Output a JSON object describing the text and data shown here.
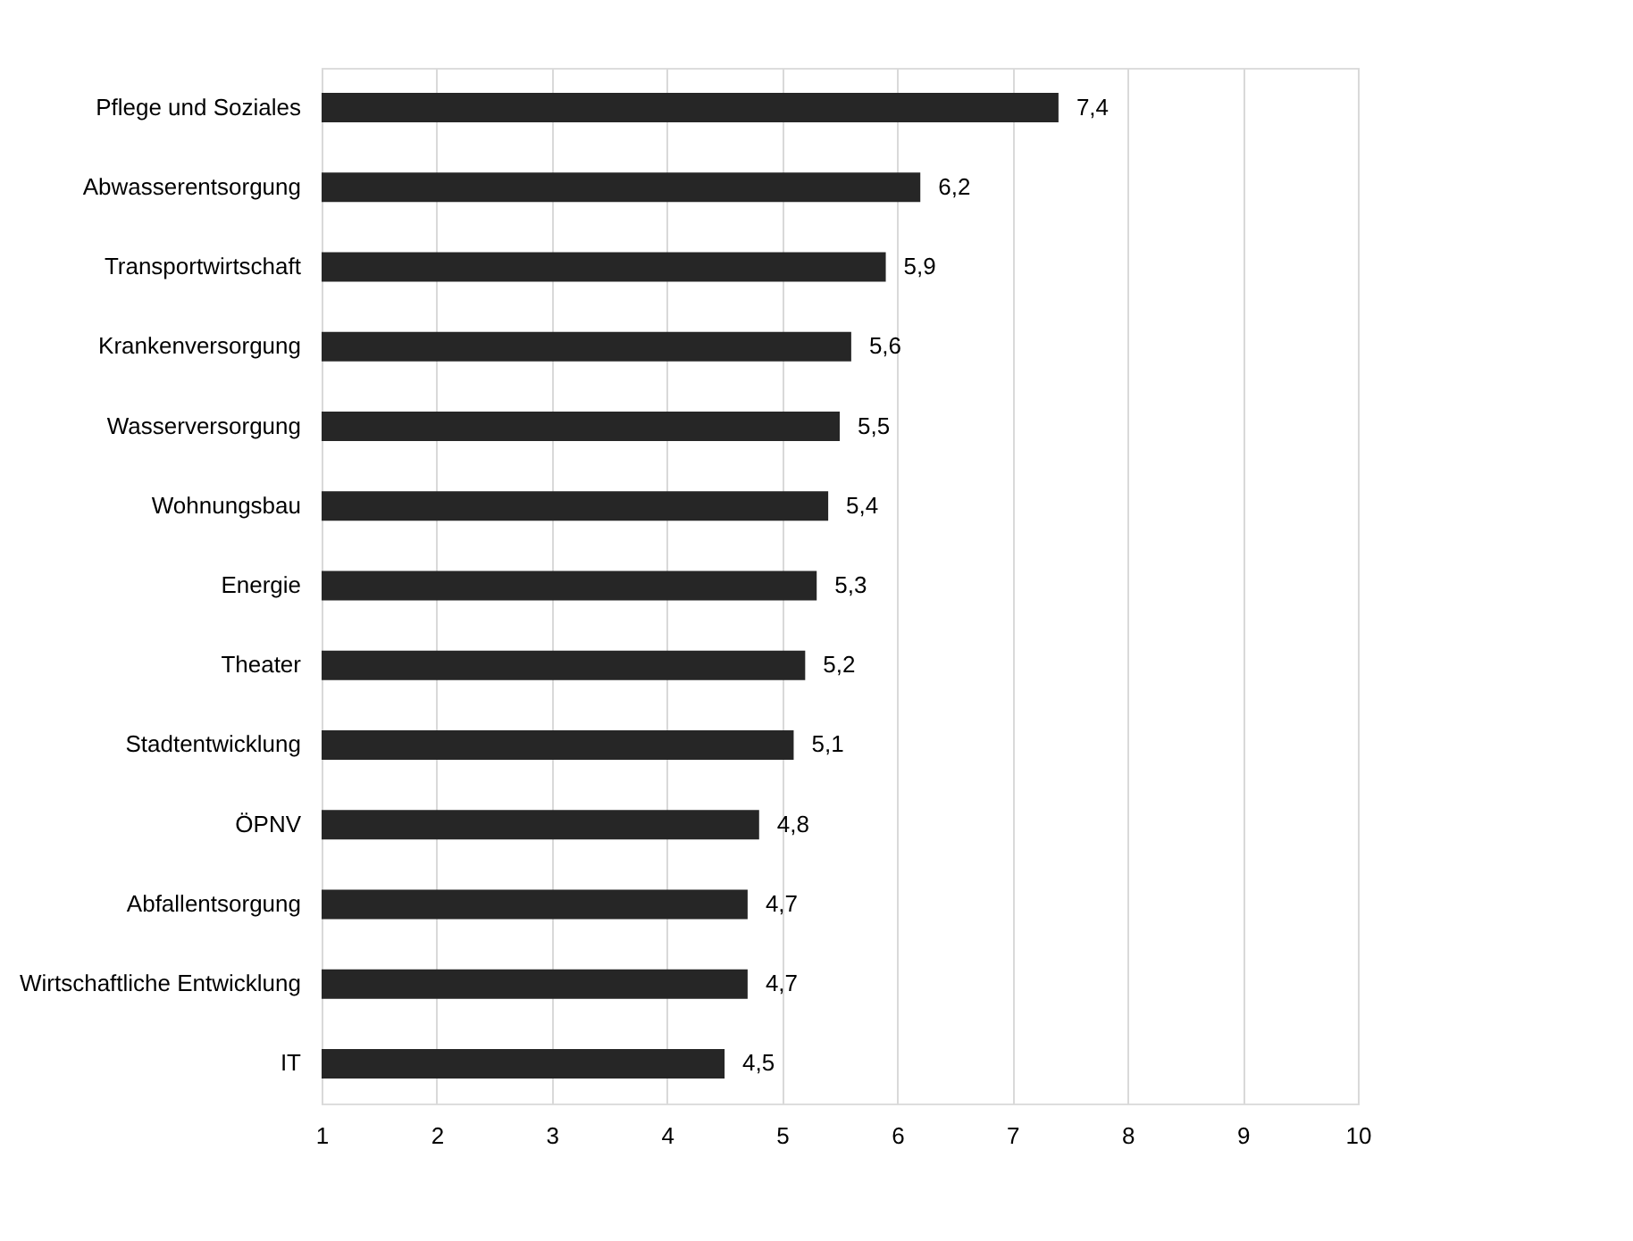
{
  "chart_data": {
    "type": "bar",
    "orientation": "horizontal",
    "categories": [
      "Pflege und Soziales",
      "Abwasserentsorgung",
      "Transportwirtschaft",
      "Krankenversorgung",
      "Wasserversorgung",
      "Wohnungsbau",
      "Energie",
      "Theater",
      "Stadtentwicklung",
      "ÖPNV",
      "Abfallentsorgung",
      "Wirtschaftliche Entwicklung",
      "IT"
    ],
    "values": [
      7.4,
      6.2,
      5.9,
      5.6,
      5.5,
      5.4,
      5.3,
      5.2,
      5.1,
      4.8,
      4.7,
      4.7,
      4.5
    ],
    "value_labels": [
      "7,4",
      "6,2",
      "5,9",
      "5,6",
      "5,5",
      "5,4",
      "5,3",
      "5,2",
      "5,1",
      "4,8",
      "4,7",
      "4,7",
      "4,5"
    ],
    "color": "#262626",
    "xlim": [
      1,
      10
    ],
    "xticks": [
      1,
      2,
      3,
      4,
      5,
      6,
      7,
      8,
      9,
      10
    ],
    "grid": "x"
  }
}
